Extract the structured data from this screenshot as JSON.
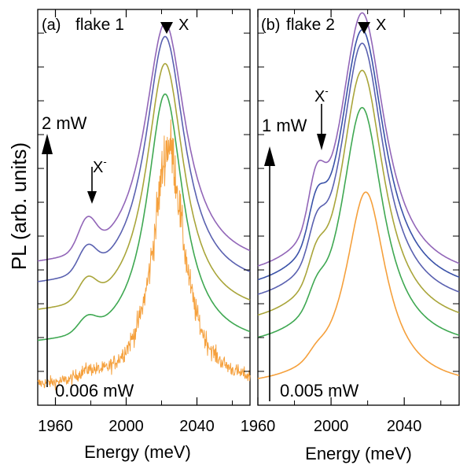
{
  "figure": {
    "ylabel": "PL (arb. units)",
    "xlabel": "Energy (meV)"
  },
  "chart_data": [
    {
      "type": "line",
      "panel_label": "(a)",
      "title": "flake 1",
      "xlabel": "Energy (meV)",
      "ylabel": "PL (arb. units)",
      "xlim": [
        1950,
        2070
      ],
      "ylim": [
        -0.05,
        1.12
      ],
      "xticks": [
        1960,
        2000,
        2040
      ],
      "y_tick_labels": "none",
      "grid": false,
      "peak_label": "X",
      "trion_label": "X",
      "trion_superscript": "-",
      "power_high": "2 mW",
      "power_low": "0.006 mW",
      "series": [
        {
          "color": "#f5a03c",
          "noisy": true,
          "baseline": 0.0,
          "peak_amp": 0.72,
          "peak_center": 2024,
          "peak_width": 10.5,
          "trion_amp": 0.02,
          "trion_center": 1978,
          "trion_width": 7
        },
        {
          "color": "#3fa852",
          "noisy": false,
          "baseline": 0.12,
          "peak_amp": 0.75,
          "peak_center": 2022,
          "peak_width": 12.5,
          "trion_amp": 0.04,
          "trion_center": 1978,
          "trion_width": 7
        },
        {
          "color": "#a9a53a",
          "noisy": false,
          "baseline": 0.21,
          "peak_amp": 0.75,
          "peak_center": 2022,
          "peak_width": 13.0,
          "trion_amp": 0.06,
          "trion_center": 1978,
          "trion_width": 7
        },
        {
          "color": "#5a61b0",
          "noisy": false,
          "baseline": 0.29,
          "peak_amp": 0.75,
          "peak_center": 2022,
          "peak_width": 13.5,
          "trion_amp": 0.07,
          "trion_center": 1978,
          "trion_width": 7
        },
        {
          "color": "#9266b8",
          "noisy": false,
          "baseline": 0.35,
          "peak_amp": 0.73,
          "peak_center": 2022,
          "peak_width": 14.0,
          "trion_amp": 0.09,
          "trion_center": 1978,
          "trion_width": 7
        }
      ]
    },
    {
      "type": "line",
      "panel_label": "(b)",
      "title": "flake 2",
      "xlabel": "Energy (meV)",
      "ylabel": "",
      "xlim": [
        1960,
        2070
      ],
      "ylim": [
        -0.05,
        1.12
      ],
      "xticks": [
        1960,
        2000,
        2040
      ],
      "y_tick_labels": "none",
      "grid": false,
      "peak_label": "X",
      "trion_label": "X",
      "trion_superscript": "-",
      "power_high": "1 mW",
      "power_low": "0.005 mW",
      "series": [
        {
          "color": "#f5a03c",
          "noisy": false,
          "baseline": 0.0,
          "peak_amp": 0.58,
          "peak_center": 2019,
          "peak_width": 13.5,
          "trion_amp": 0.02,
          "trion_center": 1992,
          "trion_width": 6
        },
        {
          "color": "#3fa852",
          "noisy": false,
          "baseline": 0.11,
          "peak_amp": 0.72,
          "peak_center": 2017,
          "peak_width": 14.0,
          "trion_amp": 0.05,
          "trion_center": 1992,
          "trion_width": 6
        },
        {
          "color": "#a9a53a",
          "noisy": false,
          "baseline": 0.17,
          "peak_amp": 0.77,
          "peak_center": 2017,
          "peak_width": 14.5,
          "trion_amp": 0.07,
          "trion_center": 1992,
          "trion_width": 6
        },
        {
          "color": "#5a61b0",
          "noisy": false,
          "baseline": 0.23,
          "peak_amp": 0.79,
          "peak_center": 2017,
          "peak_width": 14.5,
          "trion_amp": 0.09,
          "trion_center": 1992,
          "trion_width": 6
        },
        {
          "color": "#3a52a8",
          "noisy": false,
          "baseline": 0.27,
          "peak_amp": 0.79,
          "peak_center": 2017,
          "peak_width": 15.0,
          "trion_amp": 0.11,
          "trion_center": 1992,
          "trion_width": 6
        },
        {
          "color": "#9266b8",
          "noisy": false,
          "baseline": 0.31,
          "peak_amp": 0.8,
          "peak_center": 2017,
          "peak_width": 15.0,
          "trion_amp": 0.14,
          "trion_center": 1992,
          "trion_width": 6
        }
      ]
    }
  ]
}
